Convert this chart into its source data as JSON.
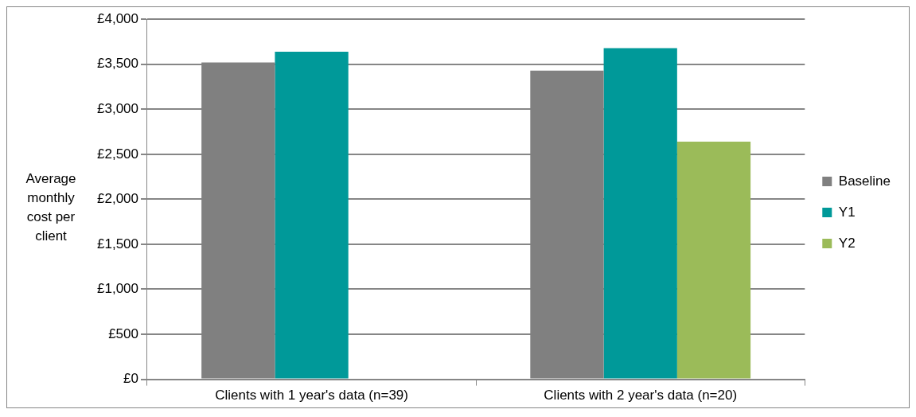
{
  "chart_data": {
    "type": "bar",
    "ylabel": "Average monthly cost per client",
    "categories": [
      "Clients with 1 year's data (n=39)",
      "Clients with 2 year's data (n=20)"
    ],
    "series": [
      {
        "name": "Baseline",
        "color": "#808080",
        "values": [
          3520,
          3430
        ]
      },
      {
        "name": "Y1",
        "color": "#009999",
        "values": [
          3640,
          3680
        ]
      },
      {
        "name": "Y2",
        "color": "#9bbb59",
        "values": [
          null,
          2640
        ]
      }
    ],
    "ylim": [
      0,
      4000
    ],
    "yticks": [
      {
        "value": 0,
        "label": "£0"
      },
      {
        "value": 500,
        "label": "£500"
      },
      {
        "value": 1000,
        "label": "£1,000"
      },
      {
        "value": 1500,
        "label": "£1,500"
      },
      {
        "value": 2000,
        "label": "£2,000"
      },
      {
        "value": 2500,
        "label": "£2,500"
      },
      {
        "value": 3000,
        "label": "£3,000"
      },
      {
        "value": 3500,
        "label": "£3,500"
      },
      {
        "value": 4000,
        "label": "£4,000"
      }
    ],
    "grid": "y",
    "legend": "right"
  }
}
